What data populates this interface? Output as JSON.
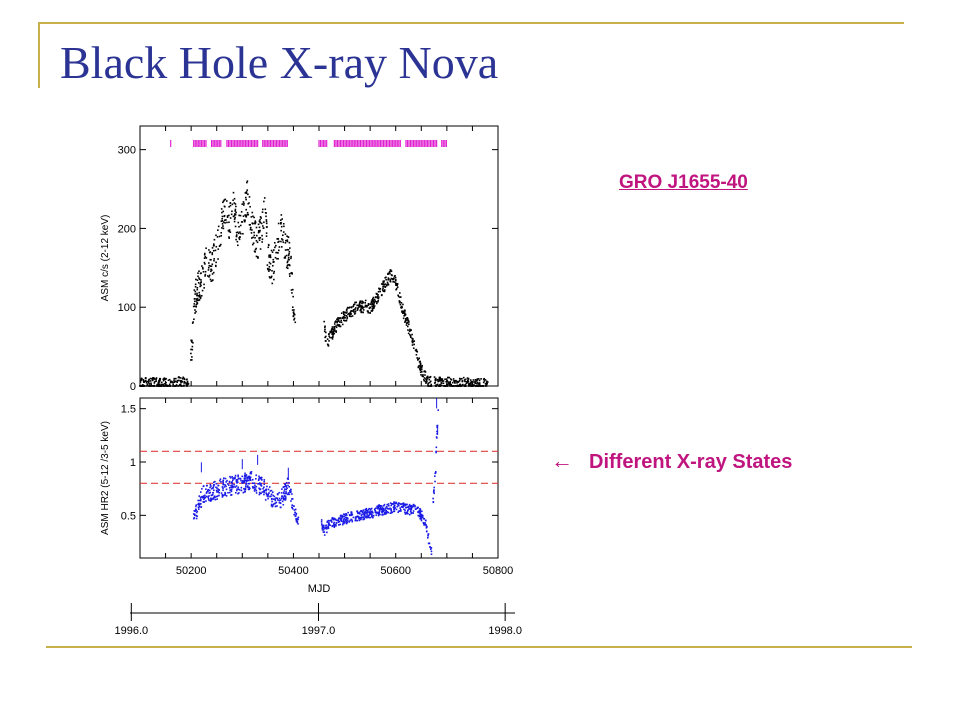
{
  "slide": {
    "title": "Black Hole X-ray Nova",
    "source_label": "GRO J1655-40",
    "states_arrow": "←",
    "states_label": "Different X-ray States"
  },
  "colors": {
    "title": "#2B3494",
    "accent": "#C0147F",
    "rule": "#C8B14B",
    "count_points": "#000000",
    "ratio_points": "#1A1AE6",
    "threshold_lines": "#E04040",
    "ticks_magenta": "#E020D0"
  },
  "chart_data": [
    {
      "type": "scatter",
      "panel": "top",
      "ylabel": "ASM c/s (2-12 keV)",
      "xlim": [
        50100,
        50800
      ],
      "ylim": [
        0,
        330
      ],
      "yticks": [
        0,
        100,
        200,
        300
      ],
      "marker_row_mjd": [
        [
          50160,
          50162
        ],
        [
          50205,
          50230
        ],
        [
          50240,
          50260
        ],
        [
          50270,
          50330
        ],
        [
          50340,
          50390
        ],
        [
          50450,
          50465
        ],
        [
          50480,
          50610
        ],
        [
          50620,
          50680
        ],
        [
          50690,
          50700
        ]
      ],
      "segments": [
        {
          "x": [
            50100,
            50120,
            50140,
            50160,
            50180,
            50195
          ],
          "y": [
            2,
            3,
            2,
            3,
            4,
            5
          ]
        },
        {
          "x": [
            50198,
            50203,
            50206,
            50210,
            50215,
            50220,
            50230,
            50240,
            50250,
            50260,
            50265,
            50270,
            50275,
            50280,
            50285,
            50290,
            50300,
            50310,
            50320,
            50330,
            50340,
            50345,
            50350,
            50360,
            50370,
            50375,
            50380,
            50385,
            50390,
            50395,
            50400,
            50405
          ],
          "y": [
            25,
            70,
            100,
            118,
            125,
            130,
            160,
            150,
            175,
            205,
            230,
            220,
            205,
            240,
            220,
            195,
            210,
            240,
            200,
            180,
            205,
            240,
            160,
            150,
            180,
            200,
            190,
            170,
            170,
            150,
            95,
            70
          ]
        },
        {
          "x": [
            50460,
            50465,
            50470,
            50480,
            50490,
            50500,
            50510,
            50520,
            50530,
            50540,
            50550,
            50560,
            50570,
            50580,
            50590,
            50595,
            50600,
            50605,
            50610,
            50620,
            50630,
            50640,
            50650,
            50660,
            50670
          ],
          "y": [
            75,
            55,
            60,
            72,
            82,
            88,
            95,
            98,
            100,
            102,
            100,
            108,
            120,
            130,
            140,
            138,
            132,
            120,
            105,
            85,
            65,
            40,
            20,
            8,
            3
          ]
        },
        {
          "x": [
            50675,
            50700,
            50720,
            50740,
            50760,
            50780
          ],
          "y": [
            4,
            3,
            2,
            3,
            2,
            3
          ]
        }
      ]
    },
    {
      "type": "scatter",
      "panel": "bottom",
      "ylabel": "ASM HR2 (5-12 /3-5 keV)",
      "xlabel": "MJD",
      "xlim": [
        50100,
        50800
      ],
      "xticks": [
        50200,
        50400,
        50600,
        50800
      ],
      "ylim": [
        0.1,
        1.6
      ],
      "yticks": [
        0.5,
        1,
        1.5
      ],
      "ytick_labels": [
        "0.5",
        "1",
        "1.5"
      ],
      "thresholds": [
        1.1,
        0.8
      ],
      "segments": [
        {
          "x": [
            50203,
            50208,
            50215,
            50225,
            50240,
            50260,
            50280,
            50300,
            50320,
            50340,
            50360,
            50370,
            50380,
            50390,
            50400,
            50410
          ],
          "y": [
            0.42,
            0.52,
            0.6,
            0.7,
            0.72,
            0.76,
            0.78,
            0.8,
            0.82,
            0.76,
            0.66,
            0.62,
            0.68,
            0.78,
            0.55,
            0.45
          ]
        },
        {
          "x": [
            50455,
            50460,
            50470,
            50490,
            50510,
            50530,
            50550,
            50570,
            50590,
            50600,
            50620,
            50640,
            50650,
            50660,
            50665,
            50670
          ],
          "y": [
            0.45,
            0.35,
            0.42,
            0.45,
            0.48,
            0.5,
            0.52,
            0.55,
            0.57,
            0.58,
            0.56,
            0.55,
            0.5,
            0.4,
            0.25,
            0.15
          ]
        },
        {
          "x": [
            50673,
            50676,
            50678,
            50680,
            50682,
            50684
          ],
          "y": [
            0.6,
            0.8,
            0.9,
            1.2,
            1.4,
            1.5
          ]
        }
      ],
      "outliers": [
        {
          "x": [
            50220,
            50300,
            50330,
            50390,
            50680,
            50682
          ],
          "y": [
            0.95,
            0.98,
            1.02,
            0.9,
            1.55,
            1.3
          ]
        }
      ]
    },
    {
      "type": "timeline",
      "panel": "years",
      "ticks": [
        {
          "mjd": 50083,
          "label": "1996.0"
        },
        {
          "mjd": 50449,
          "label": "1997.0"
        },
        {
          "mjd": 50814,
          "label": "1998.0"
        }
      ]
    }
  ]
}
